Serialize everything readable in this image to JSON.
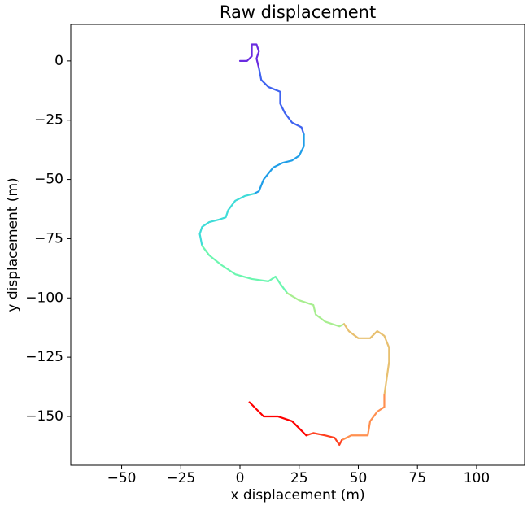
{
  "chart_data": {
    "type": "line",
    "title": "Raw displacement",
    "x_label": "x displacement (m)",
    "y_label": "y displacement (m)",
    "xlim": [
      -71.5,
      120.3
    ],
    "ylim": [
      -170.6,
      15.4
    ],
    "xticks": [
      {
        "value": -50,
        "label": "−50"
      },
      {
        "value": -25,
        "label": "−25"
      },
      0,
      25,
      50,
      75,
      100
    ],
    "yticks": [
      0,
      {
        "value": -25,
        "label": "−25"
      },
      {
        "value": -50,
        "label": "−50"
      },
      {
        "value": -75,
        "label": "−75"
      },
      {
        "value": -100,
        "label": "−100"
      },
      {
        "value": -125,
        "label": "−125"
      },
      {
        "value": -150,
        "label": "−150"
      }
    ],
    "grid": false,
    "series": [
      {
        "color": "#6a2ce0",
        "x": [
          0,
          3,
          5,
          5,
          7,
          8,
          7,
          8
        ],
        "y": [
          0,
          0,
          2,
          7,
          7,
          4,
          1,
          -3
        ]
      },
      {
        "color": "#3f63f0",
        "x": [
          8,
          9,
          12,
          17,
          17,
          19,
          22,
          26,
          27
        ],
        "y": [
          -3,
          -8,
          -11,
          -13,
          -18,
          -22,
          -26,
          -28,
          -31
        ]
      },
      {
        "color": "#1f9ee8",
        "x": [
          27,
          27,
          25,
          22,
          18,
          14,
          10,
          8,
          6
        ],
        "y": [
          -31,
          -36,
          -40,
          -42,
          -43,
          -45,
          -50,
          -55,
          -56
        ]
      },
      {
        "color": "#3fdcd8",
        "x": [
          6,
          2,
          -2,
          -5,
          -6,
          -9,
          -13,
          -16,
          -17,
          -16
        ],
        "y": [
          -56,
          -57,
          -59,
          -63,
          -66,
          -67,
          -68,
          -70,
          -73,
          -78
        ]
      },
      {
        "color": "#6cf6b0",
        "x": [
          -16,
          -13,
          -8,
          -2,
          5,
          12,
          15,
          17,
          20
        ],
        "y": [
          -78,
          -82,
          -86,
          -90,
          -92,
          -93,
          -91,
          -94,
          -98
        ]
      },
      {
        "color": "#a8ee90",
        "x": [
          20,
          25,
          31,
          32,
          36,
          42,
          44
        ],
        "y": [
          -98,
          -101,
          -103,
          -107,
          -110,
          -112,
          -111
        ]
      },
      {
        "color": "#e8c070",
        "x": [
          44,
          46,
          50,
          55,
          58,
          61,
          63,
          63,
          62,
          61
        ],
        "y": [
          -111,
          -114,
          -117,
          -117,
          -114,
          -116,
          -121,
          -127,
          -134,
          -141
        ]
      },
      {
        "color": "#ff9050",
        "x": [
          61,
          61,
          58,
          55,
          54,
          51,
          47,
          43
        ],
        "y": [
          -141,
          -146,
          -148,
          -152,
          -158,
          -158,
          -158,
          -160
        ]
      },
      {
        "color": "#ff4020",
        "x": [
          43,
          42,
          40,
          36,
          31,
          28
        ],
        "y": [
          -160,
          -162,
          -159,
          -158,
          -157,
          -158
        ]
      },
      {
        "color": "#ff0000",
        "x": [
          28,
          26,
          22,
          16,
          10,
          4
        ],
        "y": [
          -158,
          -156,
          -152,
          -150,
          -150,
          -144
        ]
      }
    ]
  }
}
